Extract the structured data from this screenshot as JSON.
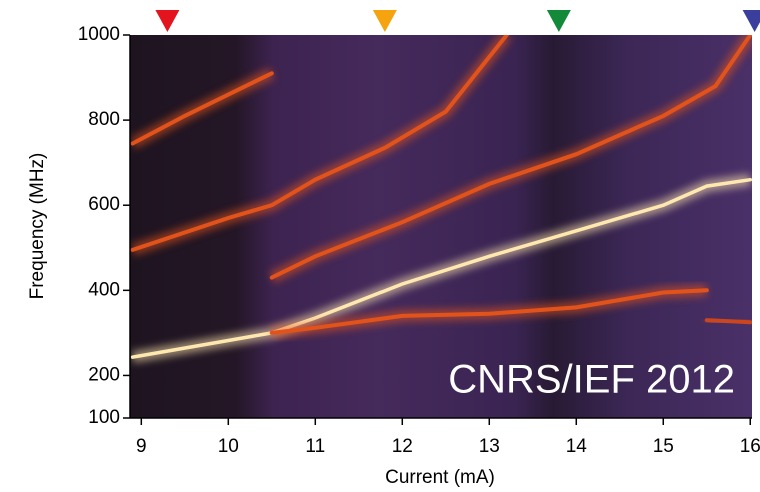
{
  "chart_data": {
    "type": "spectrogram",
    "xlabel": "Current (mA)",
    "ylabel": "Frequency (MHz)",
    "annotation": "CNRS/IEF 2012",
    "xlim": [
      8.87,
      16.02
    ],
    "ylim": [
      100,
      1000
    ],
    "xticks": [
      9,
      10,
      11,
      12,
      13,
      14,
      15,
      16
    ],
    "yticks": [
      100,
      200,
      400,
      600,
      800,
      1000
    ],
    "series": [
      {
        "color": "#ffe8b0",
        "x": [
          8.9,
          10,
          10.5,
          11,
          12,
          13,
          14,
          15,
          15.5,
          16
        ],
        "values": [
          243,
          282,
          300,
          335,
          415,
          480,
          540,
          600,
          645,
          660
        ]
      },
      {
        "color": "#e2531c",
        "x": [
          10.5,
          11,
          12,
          13,
          14,
          15,
          15.5
        ],
        "values": [
          300,
          312,
          340,
          345,
          360,
          395,
          400
        ]
      },
      {
        "color": "#e2531c",
        "x": [
          8.9,
          10,
          10.5,
          11,
          11.8,
          12.5,
          13.2
        ],
        "values": [
          495,
          570,
          600,
          660,
          735,
          820,
          1000
        ]
      },
      {
        "color": "#e2531c",
        "x": [
          10.5,
          11,
          12,
          13,
          14,
          15,
          15.6,
          16
        ],
        "values": [
          430,
          480,
          560,
          650,
          720,
          810,
          880,
          1000
        ]
      },
      {
        "color": "#e2531c",
        "x": [
          8.9,
          9.5,
          10,
          10.5
        ],
        "values": [
          745,
          810,
          860,
          910
        ]
      },
      {
        "color": "#c9461e",
        "x": [
          15.5,
          16
        ],
        "values": [
          330,
          325
        ]
      }
    ],
    "markers": [
      {
        "x": 9.3,
        "color": "#e3141e"
      },
      {
        "x": 11.8,
        "color": "#f5a40f"
      },
      {
        "x": 13.8,
        "color": "#128a3a"
      },
      {
        "x": 16.05,
        "color": "#3a3f9e"
      }
    ]
  }
}
